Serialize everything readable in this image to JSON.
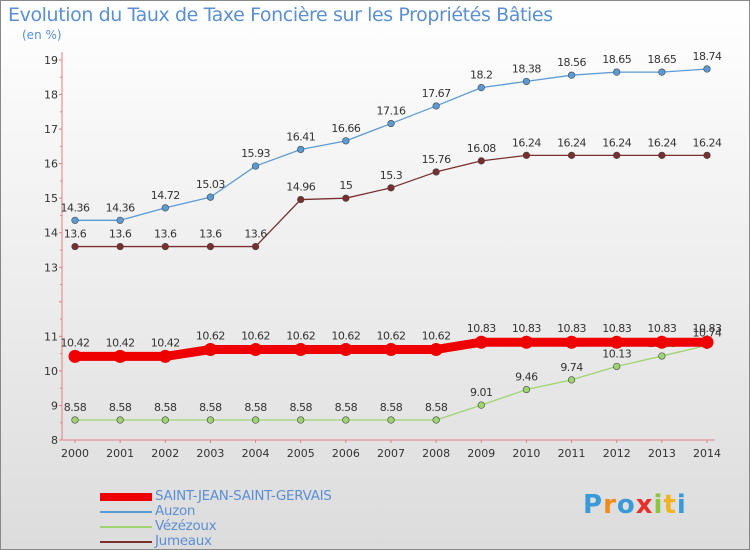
{
  "title": "Evolution du Taux de Taxe Foncière sur les Propriétés Bâties",
  "unit_label": "(en %)",
  "logo_text": "Proxiti",
  "chart_data": {
    "type": "line",
    "x": [
      2000,
      2001,
      2002,
      2003,
      2004,
      2005,
      2006,
      2007,
      2008,
      2009,
      2010,
      2011,
      2012,
      2013,
      2014
    ],
    "ylim": [
      8,
      19
    ],
    "yticks": [
      8,
      9,
      10,
      11,
      13,
      14,
      15,
      16,
      17,
      18,
      19
    ],
    "grid": false,
    "legend_position": "bottom-left",
    "series": [
      {
        "name": "SAINT-JEAN-SAINT-GERVAIS",
        "color": "#ee0000",
        "values": [
          10.42,
          10.42,
          10.42,
          10.62,
          10.62,
          10.62,
          10.62,
          10.62,
          10.62,
          10.83,
          10.83,
          10.83,
          10.83,
          10.83,
          10.83
        ],
        "labels": [
          "10.42",
          "10.42",
          "10.42",
          "10.62",
          "10.62",
          "10.62",
          "10.62",
          "10.62",
          "10.62",
          "10.83",
          "10.83",
          "10.83",
          "10.83",
          "10.83",
          "10.83"
        ]
      },
      {
        "name": "Auzon",
        "color": "#5b9bd5",
        "values": [
          14.36,
          14.36,
          14.72,
          15.03,
          15.93,
          16.41,
          16.66,
          17.16,
          17.67,
          18.2,
          18.38,
          18.56,
          18.65,
          18.65,
          18.74
        ],
        "labels": [
          "14.36",
          "14.36",
          "14.72",
          "15.03",
          "15.93",
          "16.41",
          "16.66",
          "17.16",
          "17.67",
          "18.2",
          "18.38",
          "18.56",
          "18.65",
          "18.65",
          "18.74"
        ]
      },
      {
        "name": "Vézézoux",
        "color": "#9ed470",
        "values": [
          8.58,
          8.58,
          8.58,
          8.58,
          8.58,
          8.58,
          8.58,
          8.58,
          8.58,
          9.01,
          9.46,
          9.74,
          10.13,
          10.43,
          10.74
        ],
        "labels": [
          "8.58",
          "8.58",
          "8.58",
          "8.58",
          "8.58",
          "8.58",
          "8.58",
          "8.58",
          "8.58",
          "9.01",
          "9.46",
          "9.74",
          "10.13",
          "10.43",
          "10.74"
        ]
      },
      {
        "name": "Jumeaux",
        "color": "#7a2e2e",
        "values": [
          13.6,
          13.6,
          13.6,
          13.6,
          13.6,
          14.96,
          15,
          15.3,
          15.76,
          16.08,
          16.24,
          16.24,
          16.24,
          16.24,
          16.24
        ],
        "labels": [
          "13.6",
          "13.6",
          "13.6",
          "13.6",
          "13.6",
          "14.96",
          "15",
          "15.3",
          "15.76",
          "16.08",
          "16.24",
          "16.24",
          "16.24",
          "16.24",
          "16.24"
        ]
      }
    ]
  },
  "logo_colors": [
    "#3a9ad9",
    "#f08c1e",
    "#3a9ad9",
    "#e8302a",
    "#8cc63f",
    "#f2b41e",
    "#3a9ad9"
  ]
}
